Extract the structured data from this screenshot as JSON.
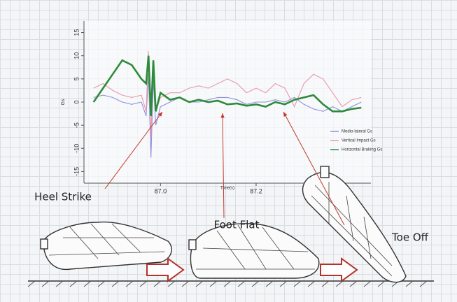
{
  "chart_data": {
    "type": "line",
    "x_label": "Time(s)",
    "y_label": "Gs",
    "x": [
      86.86,
      86.88,
      86.9,
      86.92,
      86.94,
      86.96,
      86.97,
      86.975,
      86.98,
      86.985,
      86.99,
      87.0,
      87.02,
      87.04,
      87.06,
      87.08,
      87.1,
      87.12,
      87.14,
      87.16,
      87.18,
      87.2,
      87.22,
      87.24,
      87.26,
      87.28,
      87.3,
      87.32,
      87.34,
      87.36,
      87.38,
      87.4,
      87.42
    ],
    "series": [
      {
        "name": "Medio-lateral Gs",
        "color": "#8f8fe0",
        "values": [
          1,
          1.5,
          1,
          0,
          -0.5,
          0,
          -3,
          6,
          -12,
          5,
          -5,
          -1,
          0,
          1,
          0,
          0,
          0.5,
          1,
          1,
          0.5,
          -0.5,
          0,
          0,
          0.5,
          0,
          1,
          -0.5,
          -1.5,
          -2,
          -1,
          -2,
          -1,
          0
        ]
      },
      {
        "name": "Vertical Impact Gs",
        "color": "#e79aa8",
        "values": [
          3,
          4,
          2.5,
          1.5,
          1,
          1.5,
          -2,
          11,
          -8,
          9,
          -2,
          1,
          2,
          2,
          3,
          3.5,
          3,
          4,
          5,
          4,
          2,
          3,
          2,
          4,
          3,
          -1,
          4,
          6,
          5,
          2,
          -1,
          0.5,
          1
        ]
      },
      {
        "name": "Horizontal Braking Gs",
        "color": "#2e8b3a",
        "values": [
          0,
          3,
          6,
          9,
          8,
          5,
          4,
          10,
          -3,
          9,
          -2,
          2,
          0.5,
          1,
          0,
          0.5,
          0,
          0.3,
          -0.5,
          -0.3,
          -0.8,
          -0.5,
          -1,
          0,
          -0.5,
          0.5,
          1,
          1.5,
          -0.5,
          -2,
          -2,
          -1.5,
          -1.2
        ]
      }
    ],
    "xlim": [
      86.84,
      87.44
    ],
    "ylim": [
      -17.5,
      17.5
    ],
    "xticks": [
      {
        "value": 87,
        "label": "87.0"
      },
      87.2
    ],
    "yticks": [
      -15,
      -10,
      -5,
      0,
      5,
      10,
      15
    ],
    "annotations": [
      "Heel Strike",
      "Foot Flat",
      "Toe Off"
    ]
  }
}
